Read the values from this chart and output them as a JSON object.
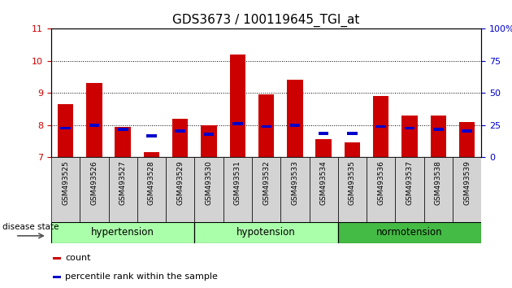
{
  "title": "GDS3673 / 100119645_TGI_at",
  "samples": [
    "GSM493525",
    "GSM493526",
    "GSM493527",
    "GSM493528",
    "GSM493529",
    "GSM493530",
    "GSM493531",
    "GSM493532",
    "GSM493533",
    "GSM493534",
    "GSM493535",
    "GSM493536",
    "GSM493537",
    "GSM493538",
    "GSM493539"
  ],
  "red_values": [
    8.65,
    9.3,
    7.95,
    7.15,
    8.2,
    8.0,
    10.2,
    8.95,
    9.4,
    7.55,
    7.45,
    8.9,
    8.3,
    8.3,
    8.1
  ],
  "blue_values": [
    7.9,
    8.0,
    7.85,
    7.65,
    7.8,
    7.7,
    8.05,
    7.95,
    8.0,
    7.73,
    7.73,
    7.95,
    7.9,
    7.85,
    7.8
  ],
  "baseline": 7.0,
  "ylim_left": [
    7,
    11
  ],
  "ylim_right": [
    0,
    100
  ],
  "yticks_left": [
    7,
    8,
    9,
    10,
    11
  ],
  "yticks_right": [
    0,
    25,
    50,
    75,
    100
  ],
  "ytick_labels_right": [
    "0",
    "25",
    "50",
    "75",
    "100%"
  ],
  "group_defs": [
    {
      "name": "hypertension",
      "start": 0,
      "end": 4,
      "facecolor": "#aaffaa"
    },
    {
      "name": "hypotension",
      "start": 5,
      "end": 9,
      "facecolor": "#aaffaa"
    },
    {
      "name": "normotension",
      "start": 10,
      "end": 14,
      "facecolor": "#44bb44"
    }
  ],
  "red_color": "#cc0000",
  "blue_color": "#0000cc",
  "bar_width": 0.55,
  "title_fontsize": 11,
  "tick_label_color_left": "#cc0000",
  "tick_label_color_right": "#0000cc",
  "disease_label": "disease state",
  "legend_items": [
    {
      "label": "count",
      "color": "#cc0000"
    },
    {
      "label": "percentile rank within the sample",
      "color": "#0000cc"
    }
  ]
}
